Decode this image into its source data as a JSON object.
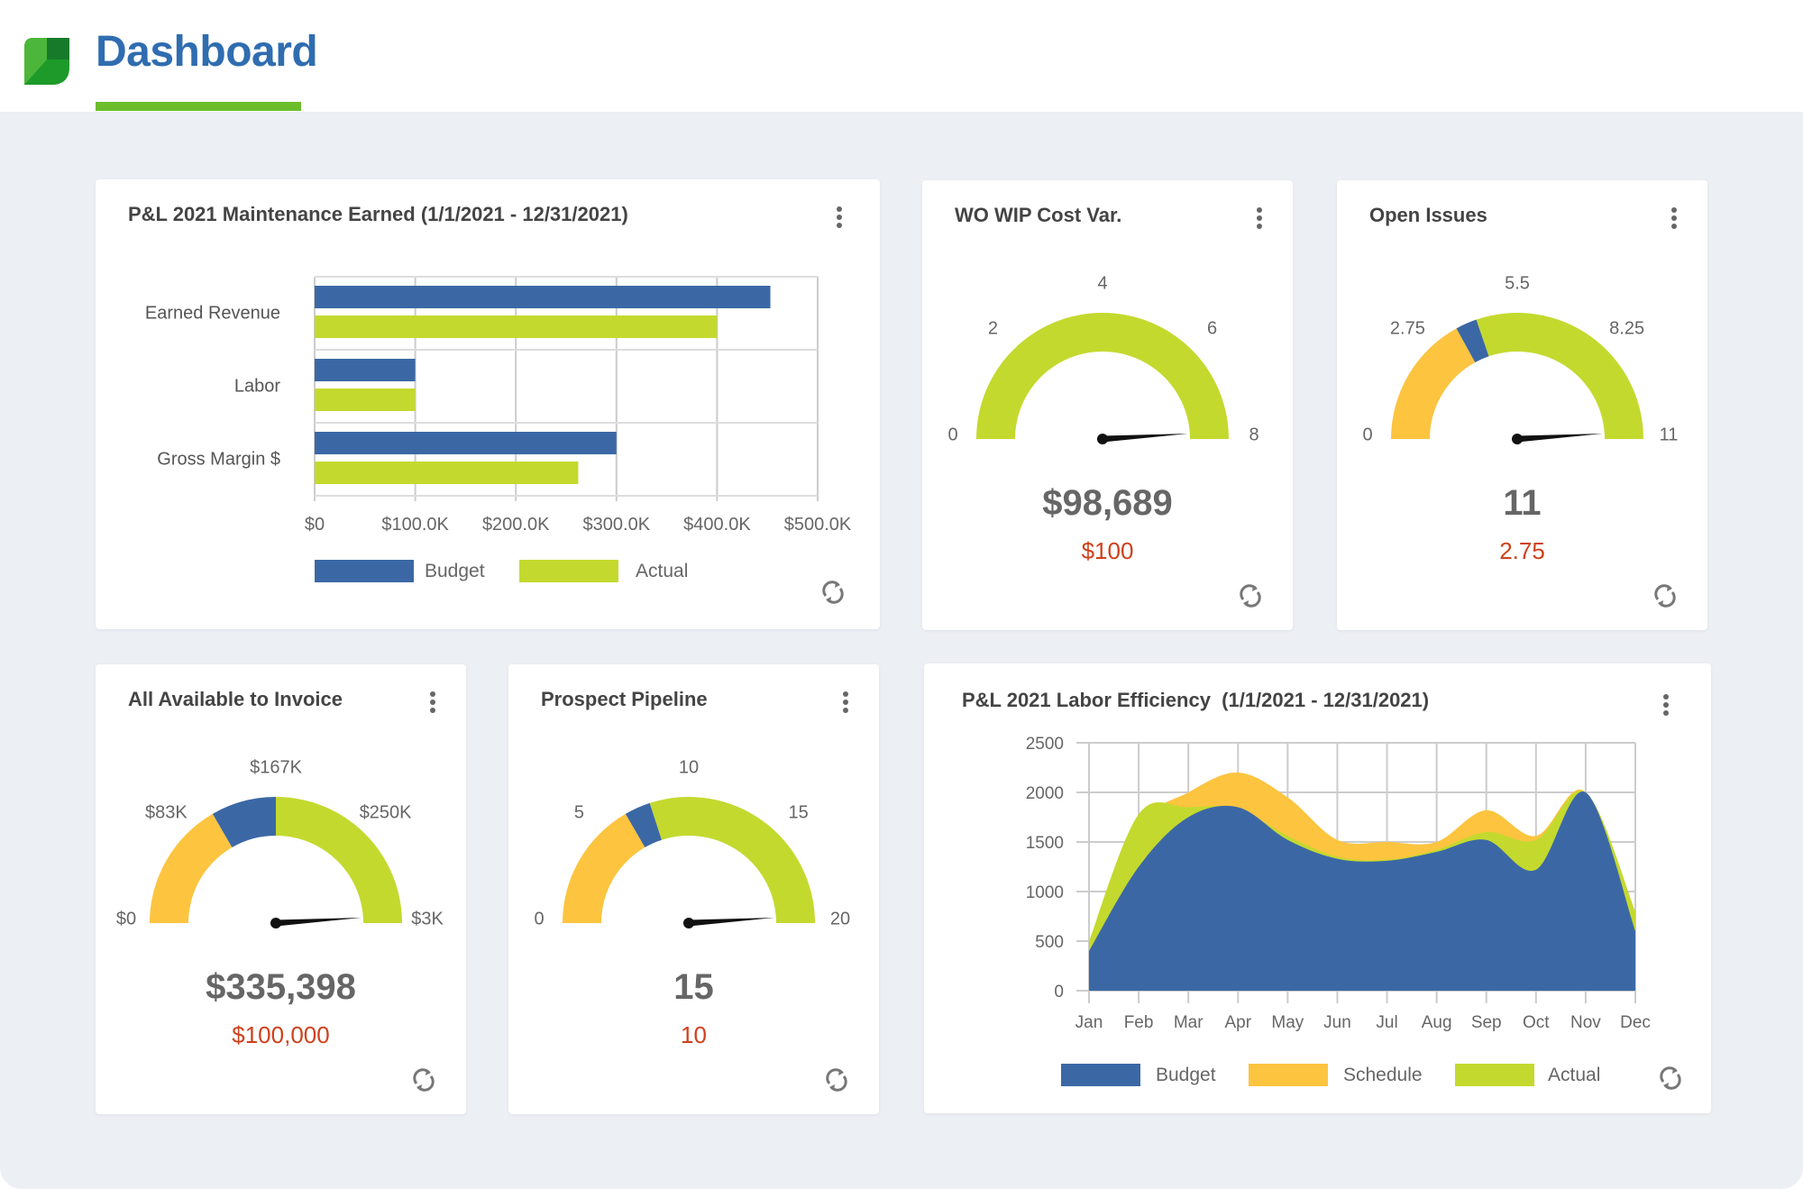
{
  "header": {
    "title": "Dashboard"
  },
  "colors": {
    "budget": "#3b68a5",
    "actual": "#c4d92e",
    "schedule": "#fcc43f",
    "subvalue": "#d0401c",
    "title": "#2f6db0",
    "accent": "#6cbd2b"
  },
  "pl_maintenance": {
    "title": "P&L 2021 Maintenance Earned (1/1/2021 - 12/31/2021)",
    "chart_data": {
      "type": "bar",
      "orientation": "horizontal",
      "categories": [
        "Earned Revenue",
        "Labor",
        "Gross Margin $"
      ],
      "series": [
        {
          "name": "Budget",
          "values": [
            453000,
            100000,
            300000
          ]
        },
        {
          "name": "Actual",
          "values": [
            400000,
            100000,
            262000
          ]
        }
      ],
      "xlim": [
        0,
        500000
      ],
      "xticks": [
        "$0",
        "$100.0K",
        "$200.0K",
        "$300.0K",
        "$400.0K",
        "$500.0K"
      ],
      "grid": true,
      "legend": "bottom"
    }
  },
  "gauges": [
    {
      "id": "wo-wip",
      "title": "WO WIP Cost Var.",
      "ticks": [
        "0",
        "2",
        "4",
        "6",
        "8"
      ],
      "value": "$98,689",
      "target": "$100",
      "needle": 0.98,
      "bands": [
        {
          "color": "#c4d92e",
          "to": 1
        }
      ]
    },
    {
      "id": "open-issues",
      "title": "Open Issues",
      "ticks": [
        "0",
        "2.75",
        "5.5",
        "8.25",
        "11"
      ],
      "value": "11",
      "target": "2.75",
      "needle": 0.98,
      "bands": [
        {
          "color": "#fcc43f",
          "to": 0.34
        },
        {
          "color": "#3b68a5",
          "to": 0.395
        },
        {
          "color": "#c4d92e",
          "to": 1
        }
      ]
    },
    {
      "id": "available-invoice",
      "title": "All Available to Invoice",
      "ticks": [
        "$0",
        "$83K",
        "$167K",
        "$250K",
        "$3K"
      ],
      "value": "$335,398",
      "target": "$100,000",
      "needle": 0.98,
      "bands": [
        {
          "color": "#fcc43f",
          "to": 0.333
        },
        {
          "color": "#3b68a5",
          "to": 0.5
        },
        {
          "color": "#c4d92e",
          "to": 1
        }
      ]
    },
    {
      "id": "prospect-pipeline",
      "title": "Prospect Pipeline",
      "ticks": [
        "0",
        "5",
        "10",
        "15",
        "20"
      ],
      "value": "15",
      "target": "10",
      "needle": 0.98,
      "bands": [
        {
          "color": "#fcc43f",
          "to": 0.333
        },
        {
          "color": "#3b68a5",
          "to": 0.4
        },
        {
          "color": "#c4d92e",
          "to": 1
        }
      ]
    }
  ],
  "labor_efficiency": {
    "title": "P&L 2021 Labor Efficiency  (1/1/2021 - 12/31/2021)",
    "chart_data": {
      "type": "area",
      "categories": [
        "Jan",
        "Feb",
        "Mar",
        "Apr",
        "May",
        "Jun",
        "Jul",
        "Aug",
        "Sep",
        "Oct",
        "Nov",
        "Dec"
      ],
      "series": [
        {
          "name": "Budget",
          "values": [
            400,
            1250,
            1750,
            1850,
            1520,
            1330,
            1310,
            1400,
            1520,
            1220,
            2000,
            600
          ]
        },
        {
          "name": "Schedule",
          "values": [
            450,
            1650,
            2000,
            2200,
            1950,
            1520,
            1500,
            1500,
            1820,
            1560,
            2000,
            600
          ]
        },
        {
          "name": "Actual",
          "values": [
            500,
            1780,
            1850,
            1830,
            1560,
            1350,
            1320,
            1420,
            1600,
            1520,
            2000,
            800
          ]
        }
      ],
      "ylim": [
        0,
        2500
      ],
      "yticks": [
        "0",
        "500",
        "1000",
        "1500",
        "2000",
        "2500"
      ],
      "grid": true,
      "legend": "bottom"
    }
  }
}
